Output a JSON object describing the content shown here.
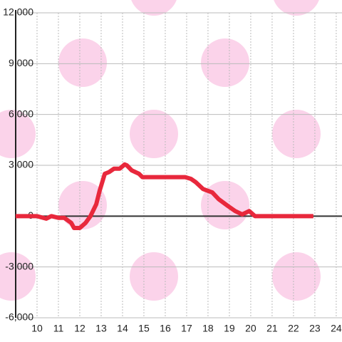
{
  "chart_data": {
    "type": "line",
    "x": [
      9,
      10,
      10.43,
      10.67,
      11,
      11.27,
      11.6,
      11.73,
      12,
      12.27,
      12.5,
      12.77,
      12.93,
      13.17,
      13.37,
      13.6,
      13.87,
      14.1,
      14.2,
      14.43,
      14.77,
      14.93,
      15.6,
      16.93,
      17.2,
      17.43,
      17.77,
      18.2,
      18.5,
      18.93,
      19.27,
      19.6,
      19.93,
      20.2,
      22.93
    ],
    "series": [
      {
        "color": "#e8283c",
        "values": [
          0,
          0,
          -150,
          0,
          -100,
          -100,
          -400,
          -700,
          -700,
          -400,
          0,
          700,
          1500,
          2500,
          2600,
          2800,
          2800,
          3050,
          3000,
          2700,
          2500,
          2300,
          2300,
          2300,
          2200,
          2000,
          1600,
          1400,
          1000,
          600,
          300,
          100,
          300,
          0,
          0
        ]
      }
    ],
    "xlim": [
      9,
      24.27
    ],
    "xticks": [
      10,
      11,
      12,
      13,
      14,
      15,
      16,
      17,
      18,
      19,
      20,
      21,
      22,
      23,
      24
    ],
    "ylim": [
      -6000,
      12000
    ],
    "yticks": [
      {
        "value": -6000,
        "label": "-6,000"
      },
      {
        "value": -3000,
        "label": "-3,000"
      },
      0,
      {
        "value": 3000,
        "label": "3,000"
      },
      {
        "value": 6000,
        "label": "6,000"
      },
      {
        "value": 9000,
        "label": "9,000"
      },
      {
        "value": 12000,
        "label": "12,000"
      }
    ],
    "grid": true
  }
}
